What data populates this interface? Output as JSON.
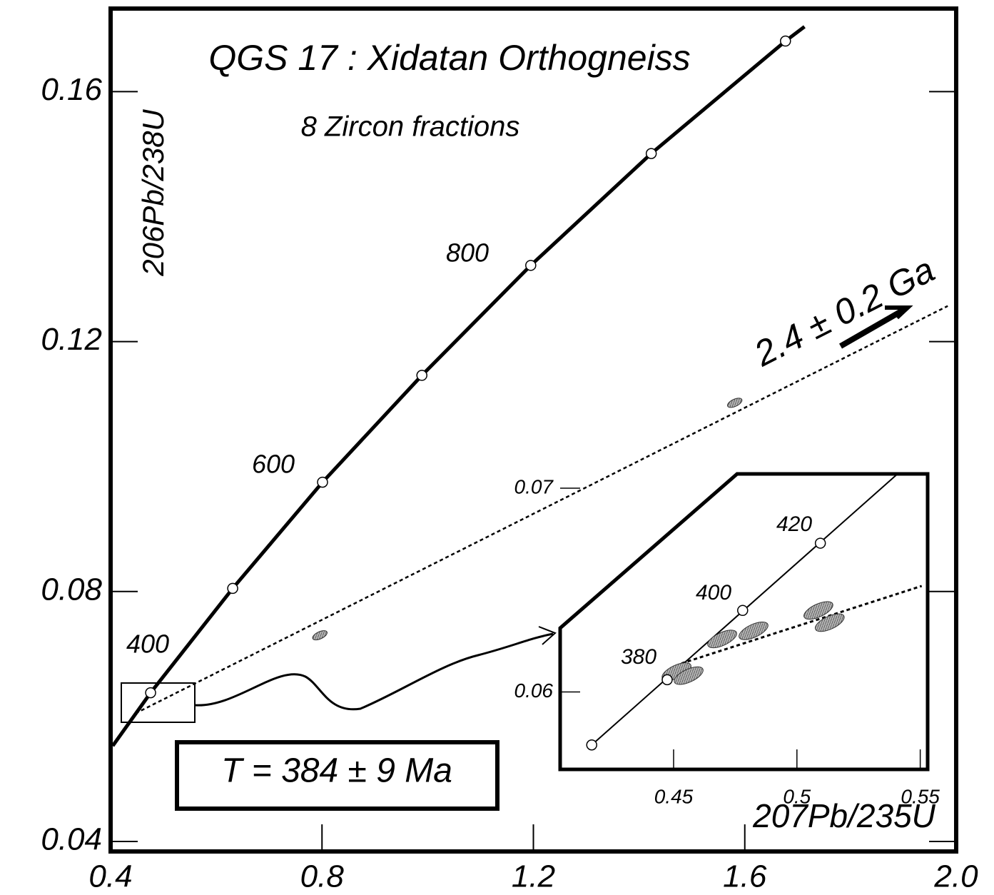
{
  "chart_data": {
    "type": "concordia",
    "title": "QGS 17 : Xidatan Orthogneiss",
    "subtitle": "8 Zircon fractions",
    "xlabel": "207Pb/235U",
    "ylabel": "206Pb/238U",
    "xlim": [
      0.4,
      2.0
    ],
    "ylim": [
      0.0384,
      0.1733
    ],
    "xticks": [
      0.4,
      0.8,
      1.2,
      1.6,
      {
        "value": 2,
        "label": "2.0"
      }
    ],
    "yticks": [
      0.04,
      0.08,
      0.12,
      0.16
    ],
    "concordia": {
      "x": [
        0.404,
        0.4757,
        0.631,
        0.801,
        0.989,
        1.195,
        1.423,
        1.677,
        1.713
      ],
      "y": [
        0.0553,
        0.0638,
        0.0805,
        0.0975,
        0.1146,
        0.1322,
        0.1501,
        0.1681,
        0.1704
      ]
    },
    "age_markers": {
      "x": [
        0.4757,
        0.631,
        0.801,
        0.989,
        1.195,
        1.423,
        1.677
      ],
      "y": [
        0.0638,
        0.0805,
        0.0975,
        0.1146,
        0.1322,
        0.1501,
        0.1681
      ]
    },
    "age_labels": [
      "400",
      "600",
      "800"
    ],
    "discordia": {
      "x": [
        0.447,
        1.984
      ],
      "y": [
        0.0605,
        0.1257
      ]
    },
    "fractions": {
      "x": [
        1.581,
        0.796
      ],
      "y": [
        0.1102,
        0.073
      ]
    },
    "annotations": [
      "2.4 ± 0.2 Ga",
      "T = 384 ± 9 Ma"
    ],
    "inset": {
      "xlim": [
        0.404,
        0.553
      ],
      "ylim": [
        0.0562,
        0.0707
      ],
      "xticks": [
        0.45,
        0.5,
        0.55
      ],
      "yticks": [
        0.06,
        0.07
      ],
      "concordia": {
        "x": [
          0.4168,
          0.5408
        ],
        "y": [
          0.0574,
          0.0707
        ]
      },
      "age_markers": {
        "x": [
          0.4168,
          0.4474,
          0.478,
          0.5095
        ],
        "y": [
          0.0574,
          0.0606,
          0.064,
          0.0673
        ]
      },
      "age_labels": [
        "380",
        "400",
        "420"
      ],
      "discordia": {
        "x": [
          0.4532,
          0.5506
        ],
        "y": [
          0.0614,
          0.0652
        ]
      },
      "fractions": {
        "x": [
          0.4512,
          0.4561,
          0.4697,
          0.4824,
          0.5087,
          0.5133
        ],
        "y": [
          0.061,
          0.0608,
          0.0626,
          0.063,
          0.064,
          0.0634
        ]
      }
    }
  }
}
